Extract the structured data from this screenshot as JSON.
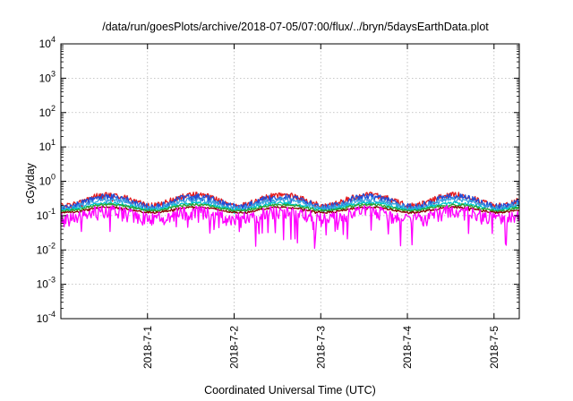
{
  "chart_data": {
    "type": "line",
    "title": "/data/run/goesPlots/archive/2018-07-05/07:00/flux/../bryn/5daysEarthData.plot",
    "xlabel": "Coordinated Universal Time (UTC)",
    "ylabel": "cGy/day",
    "yscale": "log",
    "ylim": [
      0.0001,
      10000
    ],
    "yticks": [
      {
        "value": 0.0001,
        "base": "10",
        "exp": "-4"
      },
      {
        "value": 0.001,
        "base": "10",
        "exp": "-3"
      },
      {
        "value": 0.01,
        "base": "10",
        "exp": "-2"
      },
      {
        "value": 0.1,
        "base": "10",
        "exp": "-1"
      },
      {
        "value": 1,
        "base": "10",
        "exp": "0"
      },
      {
        "value": 10,
        "base": "10",
        "exp": "1"
      },
      {
        "value": 100,
        "base": "10",
        "exp": "2"
      },
      {
        "value": 1000,
        "base": "10",
        "exp": "3"
      },
      {
        "value": 10000,
        "base": "10",
        "exp": "4"
      }
    ],
    "xlim": [
      "2018-06-30 00:00",
      "2018-07-05 07:00"
    ],
    "xticks": [
      {
        "value": "2018-07-01 00:00",
        "label": "2018-7-1"
      },
      {
        "value": "2018-07-02 00:00",
        "label": "2018-7-2"
      },
      {
        "value": "2018-07-03 00:00",
        "label": "2018-7-3"
      },
      {
        "value": "2018-07-04 00:00",
        "label": "2018-7-4"
      },
      {
        "value": "2018-07-05 00:00",
        "label": "2018-7-5"
      }
    ],
    "grid": true,
    "series": [
      {
        "color": "#e41a1c",
        "base": 0.3,
        "amp": 0.35,
        "noise": 0.2,
        "dip": 0.08
      },
      {
        "color": "#1f4ed8",
        "base": 0.27,
        "amp": 0.33,
        "noise": 0.22,
        "dip": 0.1
      },
      {
        "color": "#3aa0e0",
        "base": 0.23,
        "amp": 0.28,
        "noise": 0.15,
        "dip": 0.08
      },
      {
        "color": "#00c8c8",
        "base": 0.19,
        "amp": 0.22,
        "noise": 0.1,
        "dip": 0.06
      },
      {
        "color": "#2ca02c",
        "base": 0.175,
        "amp": 0.2,
        "noise": 0.08,
        "dip": 0.05
      },
      {
        "color": "#8b0000",
        "base": 0.15,
        "amp": 0.18,
        "noise": 0.06,
        "dip": 0.04
      },
      {
        "color": "#ff00ff",
        "base": 0.11,
        "amp": 0.25,
        "noise": 0.45,
        "dip": 0.35
      }
    ]
  }
}
